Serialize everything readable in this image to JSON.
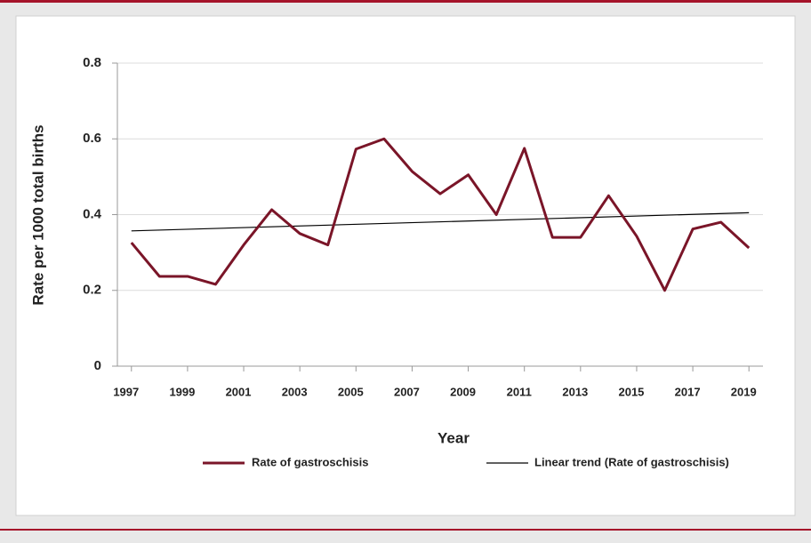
{
  "chart_data": {
    "type": "line",
    "x_label": "Year",
    "y_label": "Rate per 1000 total births",
    "x": [
      1997,
      1998,
      1999,
      2000,
      2001,
      2002,
      2003,
      2004,
      2005,
      2006,
      2007,
      2008,
      2009,
      2010,
      2011,
      2012,
      2013,
      2014,
      2015,
      2016,
      2017,
      2018,
      2019
    ],
    "series": [
      {
        "name": "Rate of gastroschisis",
        "color": "#7a1528",
        "values": [
          0.326,
          0.237,
          0.237,
          0.216,
          0.32,
          0.413,
          0.35,
          0.32,
          0.573,
          0.6,
          0.514,
          0.455,
          0.505,
          0.4,
          0.575,
          0.34,
          0.34,
          0.45,
          0.343,
          0.2,
          0.362,
          0.38,
          0.312
        ]
      }
    ],
    "trend": {
      "name": "Linear trend (Rate of gastroschisis)",
      "color": "#000000",
      "x": [
        1997,
        2019
      ],
      "values": [
        0.357,
        0.405
      ]
    },
    "xlim": [
      1996.5,
      2019.5
    ],
    "xticks": [
      1997,
      1999,
      2001,
      2003,
      2005,
      2007,
      2009,
      2011,
      2013,
      2015,
      2017,
      2019
    ],
    "ylim": [
      0,
      0.8
    ],
    "yticks": [
      0,
      0.2,
      0.4,
      0.6,
      0.8
    ],
    "grid": true,
    "legend": "bottom"
  }
}
